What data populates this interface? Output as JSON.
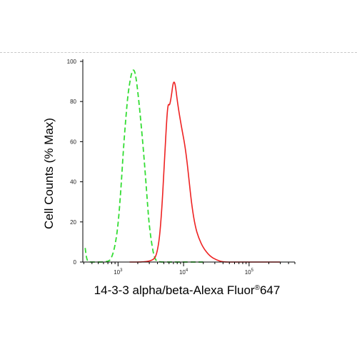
{
  "chart_data": {
    "type": "line",
    "xlabel": "14-3-3 alpha/beta-Alexa Fluor",
    "xlabel_mark": "®",
    "xlabel_suffix": "647",
    "ylabel": "Cell Counts (% Max)",
    "xscale": "log",
    "ylim": [
      0,
      100
    ],
    "grid": false,
    "y_ticks": [
      0,
      20,
      40,
      60,
      80,
      100
    ],
    "x_ticks": [
      {
        "value": 1000,
        "base": "10",
        "exp": "3"
      },
      {
        "value": 10000,
        "base": "10",
        "exp": "4"
      },
      {
        "value": 100000,
        "base": "10",
        "exp": "5"
      }
    ],
    "series": [
      {
        "color": "#33dd33",
        "style": "dashed",
        "points": [
          [
            315,
            7
          ],
          [
            330,
            2
          ],
          [
            350,
            0
          ],
          [
            400,
            0
          ],
          [
            700,
            0
          ],
          [
            800,
            2
          ],
          [
            900,
            8
          ],
          [
            1000,
            18
          ],
          [
            1100,
            35
          ],
          [
            1200,
            55
          ],
          [
            1300,
            70
          ],
          [
            1400,
            82
          ],
          [
            1500,
            89
          ],
          [
            1600,
            94
          ],
          [
            1700,
            96
          ],
          [
            1800,
            95
          ],
          [
            1900,
            91
          ],
          [
            2000,
            85
          ],
          [
            2200,
            72
          ],
          [
            2500,
            52
          ],
          [
            2800,
            30
          ],
          [
            3000,
            18
          ],
          [
            3300,
            8
          ],
          [
            3600,
            2
          ],
          [
            4000,
            0
          ],
          [
            6000,
            0
          ],
          [
            6600,
            0
          ],
          [
            8000,
            0
          ],
          [
            20000,
            0
          ]
        ]
      },
      {
        "color": "#ee2222",
        "style": "solid",
        "points": [
          [
            1500,
            0
          ],
          [
            2500,
            0
          ],
          [
            3500,
            1
          ],
          [
            3900,
            4
          ],
          [
            4300,
            12
          ],
          [
            4700,
            28
          ],
          [
            5100,
            50
          ],
          [
            5500,
            70
          ],
          [
            5800,
            79
          ],
          [
            6100,
            78
          ],
          [
            6300,
            80
          ],
          [
            6600,
            84
          ],
          [
            6900,
            89
          ],
          [
            7200,
            90
          ],
          [
            7500,
            88
          ],
          [
            7900,
            82
          ],
          [
            8400,
            76
          ],
          [
            9000,
            70
          ],
          [
            9700,
            64
          ],
          [
            10500,
            58
          ],
          [
            11300,
            50
          ],
          [
            12200,
            40
          ],
          [
            13500,
            27
          ],
          [
            15000,
            18
          ],
          [
            17000,
            12
          ],
          [
            20000,
            7
          ],
          [
            25000,
            3
          ],
          [
            32000,
            1
          ],
          [
            40000,
            0
          ],
          [
            60000,
            0
          ],
          [
            100000,
            0
          ],
          [
            300000,
            0
          ]
        ]
      }
    ]
  }
}
